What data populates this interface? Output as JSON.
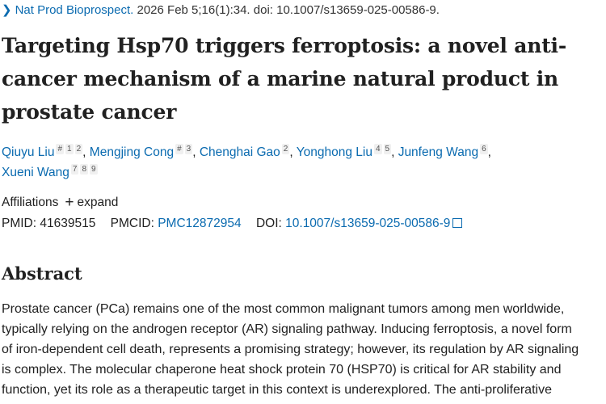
{
  "citation": {
    "journal": "Nat Prod Bioprospect.",
    "details": " 2026 Feb 5;16(1):34. doi: 10.1007/s13659-025-00586-9."
  },
  "title": "Targeting Hsp70 triggers ferroptosis: a novel anti-cancer mechanism of a marine natural product in prostate cancer",
  "authors": [
    {
      "name": "Qiuyu Liu",
      "sups": [
        "#",
        "1",
        "2"
      ]
    },
    {
      "name": "Mengjing Cong",
      "sups": [
        "#",
        "3"
      ]
    },
    {
      "name": "Chenghai Gao",
      "sups": [
        "2"
      ]
    },
    {
      "name": "Yonghong Liu",
      "sups": [
        "4",
        "5"
      ]
    },
    {
      "name": "Junfeng Wang",
      "sups": [
        "6"
      ]
    },
    {
      "name": "Xueni Wang",
      "sups": [
        "7",
        "8",
        "9"
      ]
    }
  ],
  "affiliations": {
    "label": "Affiliations",
    "expand": "expand"
  },
  "ids": {
    "pmid_label": "PMID:",
    "pmid": "41639515",
    "pmcid_label": "PMCID:",
    "pmcid": "PMC12872954",
    "doi_label": "DOI:",
    "doi": "10.1007/s13659-025-00586-9"
  },
  "abstract": {
    "heading": "Abstract",
    "lines": [
      "Prostate cancer (PCa) remains one of the most common malignant tumors among men worldwide,",
      "typically relying on the androgen receptor (AR) signaling pathway. Inducing ferroptosis, a novel form",
      "of iron-dependent cell death, represents a promising strategy; however, its regulation by AR signaling",
      "is complex. The molecular chaperone heat shock protein 70 (HSP70) is critical for AR stability and",
      "function, yet its role as a therapeutic target in this context is underexplored. The anti-proliferative"
    ]
  }
}
